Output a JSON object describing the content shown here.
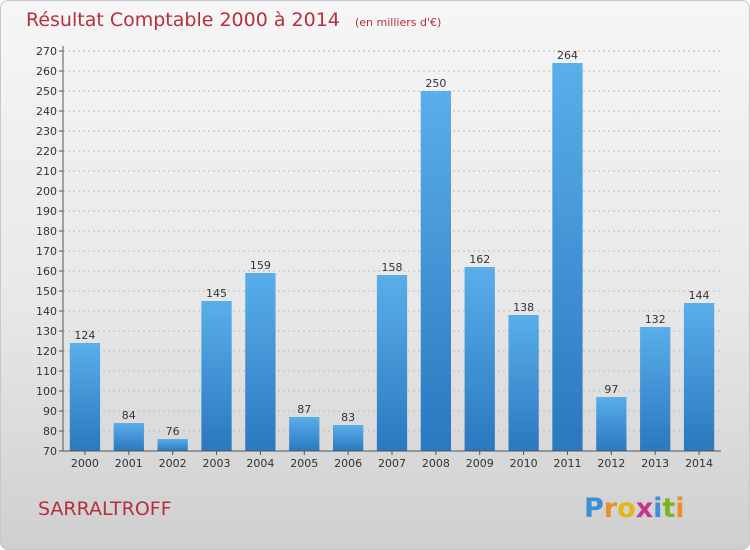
{
  "chart_data": {
    "type": "bar",
    "title": "Résultat Comptable 2000 à 2014",
    "subtitle": "(en milliers d'€)",
    "categories": [
      "2000",
      "2001",
      "2002",
      "2003",
      "2004",
      "2005",
      "2006",
      "2007",
      "2008",
      "2009",
      "2010",
      "2011",
      "2012",
      "2013",
      "2014"
    ],
    "values": [
      124,
      84,
      76,
      145,
      159,
      87,
      83,
      158,
      250,
      162,
      138,
      264,
      97,
      132,
      144
    ],
    "ylim": [
      70,
      270
    ],
    "ytick_step": 10,
    "grid": true,
    "bar_color": "#3a8fd6",
    "bar_color_light": "#5aaeea",
    "bar_color_dark": "#2a78bf"
  },
  "place_name": "SARRALTROFF",
  "logo": {
    "letters": [
      "P",
      "r",
      "o",
      "x",
      "i",
      "t",
      "i"
    ],
    "colors": [
      "#3a8fd6",
      "#e8912c",
      "#e5b41a",
      "#c4378b",
      "#3a8fd6",
      "#7ab51d",
      "#e8912c"
    ]
  }
}
